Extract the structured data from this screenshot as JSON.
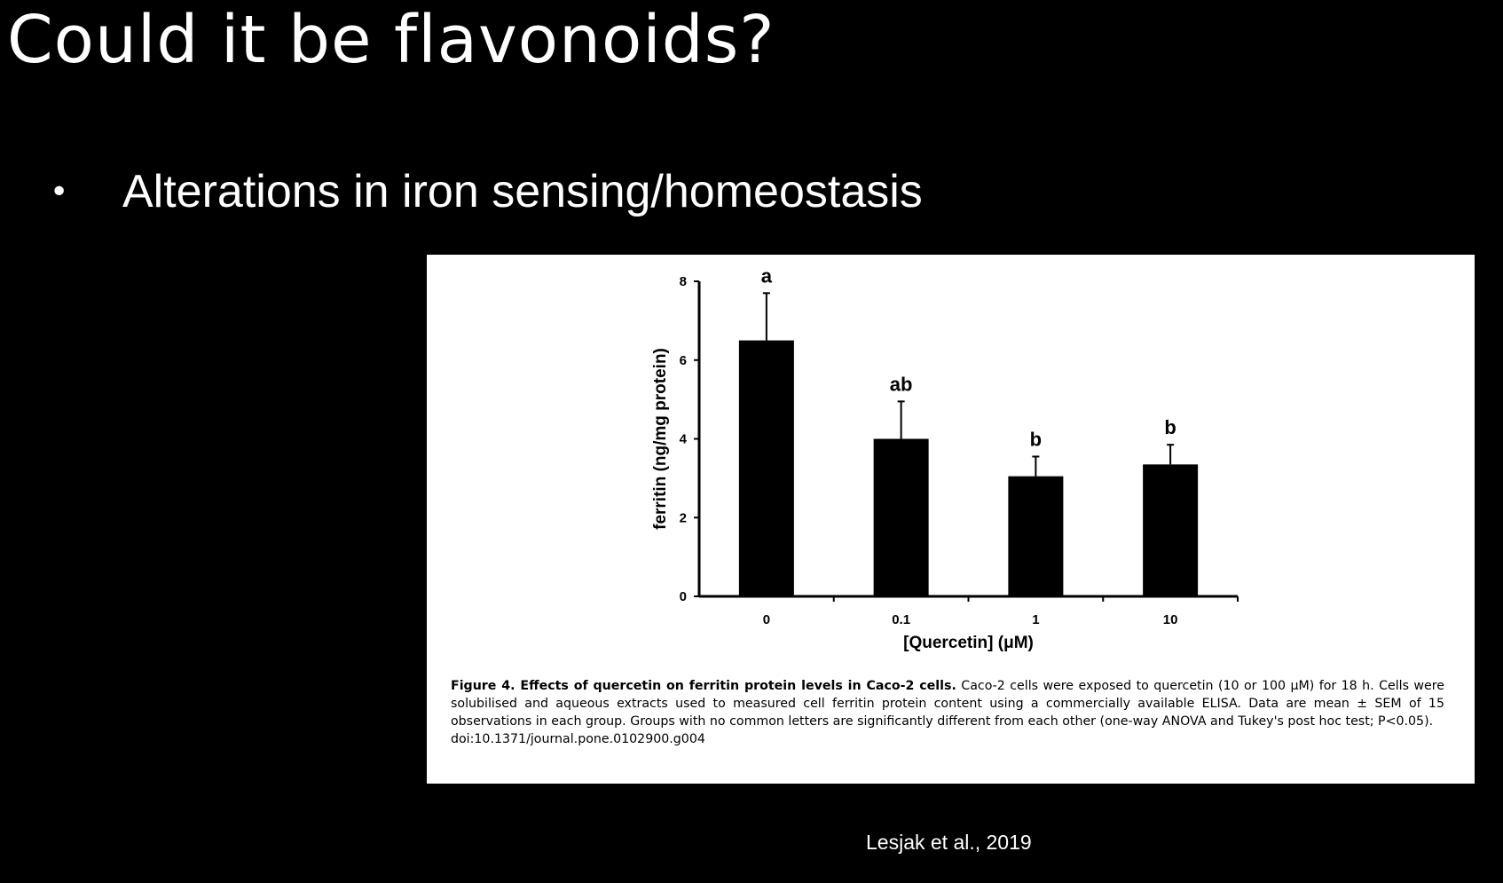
{
  "slide": {
    "title": "Could it be flavonoids?",
    "bullet": "Alterations in iron sensing/homeostasis",
    "citation": "Lesjak et al., 2019"
  },
  "figure": {
    "caption_title": "Figure 4. Effects of quercetin on ferritin protein levels in Caco-2 cells.",
    "caption_body": " Caco-2 cells were exposed to quercetin (10 or 100 μM) for 18 h. Cells were solubilised and aqueous extracts used to measured cell ferritin protein content using a commercially available ELISA. Data are mean ± SEM of 15 observations in each group. Groups with no common letters are significantly different from each other (one-way ANOVA and Tukey's post hoc test; P<0.05).",
    "doi": "doi:10.1371/journal.pone.0102900.g004"
  },
  "chart_data": {
    "type": "bar",
    "categories": [
      "0",
      "0.1",
      "1",
      "10"
    ],
    "values": [
      6.5,
      4.0,
      3.05,
      3.35
    ],
    "errors": [
      1.2,
      0.95,
      0.5,
      0.5
    ],
    "significance_labels": [
      "a",
      "ab",
      "b",
      "b"
    ],
    "xlabel": "[Quercetin] (μM)",
    "ylabel": "ferritin (ng/mg protein)",
    "ylim": [
      0,
      8
    ],
    "yticks": [
      0,
      2,
      4,
      6,
      8
    ],
    "bar_color": "#000000",
    "grid": false
  }
}
